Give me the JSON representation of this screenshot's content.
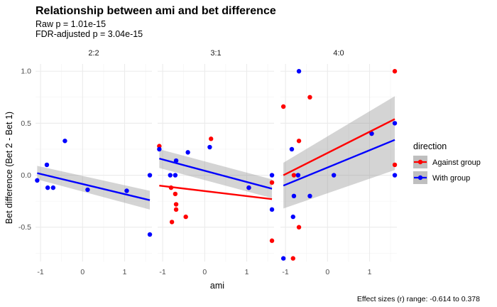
{
  "chart_data": {
    "type": "scatter",
    "title": "Relationship between ami and bet difference",
    "subtitle_lines": [
      "Raw p = 1.01e-15",
      "FDR-adjusted p = 3.04e-15"
    ],
    "xlabel": "ami",
    "ylabel": "Bet difference (Bet 2 - Bet 1)",
    "caption": "Effect sizes (r) range: -0.614 to 0.378",
    "xlim": [
      -1.12,
      1.65
    ],
    "ylim": [
      -0.83,
      1.07
    ],
    "x_ticks": [
      -1,
      0,
      1
    ],
    "x_tick_labels": [
      "-1",
      "0",
      "1"
    ],
    "y_ticks": [
      -0.5,
      0.0,
      0.5,
      1.0
    ],
    "y_tick_labels": [
      "-0.5",
      "0.0",
      "0.5",
      "1.0"
    ],
    "grid": true,
    "legend": {
      "title": "direction",
      "position": "right",
      "entries": [
        {
          "label": "Against group",
          "color": "#ff0000"
        },
        {
          "label": "With group",
          "color": "#0000ff"
        }
      ]
    },
    "panels": [
      {
        "label": "2:2",
        "series": [
          {
            "name": "With group",
            "color": "#0000ff",
            "points": [
              [
                -1.08,
                -0.05
              ],
              [
                -0.85,
                0.1
              ],
              [
                -0.83,
                -0.12
              ],
              [
                -0.7,
                -0.12
              ],
              [
                -0.42,
                0.33
              ],
              [
                0.12,
                -0.14
              ],
              [
                1.05,
                -0.15
              ],
              [
                1.6,
                0.0
              ],
              [
                1.6,
                -0.57
              ]
            ],
            "fit": {
              "x": [
                -1.08,
                1.6
              ],
              "y": [
                0.02,
                -0.24
              ],
              "ci_start": [
                -0.04,
                0.09
              ],
              "ci_end": [
                -0.33,
                -0.15
              ]
            }
          }
        ]
      },
      {
        "label": "3:1",
        "series": [
          {
            "name": "Against group",
            "color": "#ff0000",
            "points": [
              [
                -1.08,
                0.28
              ],
              [
                -0.8,
                -0.12
              ],
              [
                -0.78,
                -0.45
              ],
              [
                -0.7,
                -0.18
              ],
              [
                -0.68,
                -0.28
              ],
              [
                -0.68,
                -0.33
              ],
              [
                -0.45,
                -0.4
              ],
              [
                0.15,
                0.35
              ],
              [
                1.05,
                -0.12
              ],
              [
                1.6,
                -0.07
              ],
              [
                1.6,
                -0.63
              ]
            ],
            "fit": {
              "x": [
                -1.08,
                1.6
              ],
              "y": [
                -0.1,
                -0.23
              ]
            }
          },
          {
            "name": "With group",
            "color": "#0000ff",
            "points": [
              [
                -1.08,
                0.25
              ],
              [
                -0.82,
                0.0
              ],
              [
                -0.7,
                0.0
              ],
              [
                -0.68,
                0.14
              ],
              [
                -0.4,
                0.22
              ],
              [
                0.12,
                0.27
              ],
              [
                1.05,
                -0.12
              ],
              [
                1.6,
                0.0
              ],
              [
                1.6,
                -0.33
              ]
            ],
            "fit": {
              "x": [
                -1.08,
                1.6
              ],
              "y": [
                0.16,
                -0.13
              ],
              "ci_start": [
                0.07,
                0.25
              ],
              "ci_end": [
                -0.22,
                -0.04
              ]
            }
          }
        ]
      },
      {
        "label": "4:0",
        "series": [
          {
            "name": "Against group",
            "color": "#ff0000",
            "points": [
              [
                -1.05,
                0.66
              ],
              [
                -0.82,
                -0.8
              ],
              [
                -0.8,
                0.0
              ],
              [
                -0.7,
                0.0
              ],
              [
                -0.68,
                0.33
              ],
              [
                -0.68,
                -0.5
              ],
              [
                -0.42,
                0.75
              ],
              [
                1.05,
                0.4
              ],
              [
                1.6,
                1.0
              ],
              [
                1.6,
                0.1
              ]
            ],
            "fit": {
              "x": [
                -1.05,
                1.6
              ],
              "y": [
                0.0,
                0.54
              ]
            }
          },
          {
            "name": "With group",
            "color": "#0000ff",
            "points": [
              [
                -1.05,
                -0.8
              ],
              [
                -0.85,
                0.25
              ],
              [
                -0.82,
                -0.4
              ],
              [
                -0.8,
                -0.2
              ],
              [
                -0.7,
                0.0
              ],
              [
                -0.68,
                1.0
              ],
              [
                -0.42,
                -0.2
              ],
              [
                0.15,
                0.0
              ],
              [
                1.05,
                0.4
              ],
              [
                1.6,
                0.5
              ],
              [
                1.6,
                0.0
              ]
            ],
            "fit": {
              "x": [
                -1.05,
                1.6
              ],
              "y": [
                -0.1,
                0.34
              ],
              "ci_start": [
                -0.32,
                0.12
              ],
              "ci_end": [
                0.05,
                0.76
              ]
            }
          }
        ]
      }
    ]
  }
}
